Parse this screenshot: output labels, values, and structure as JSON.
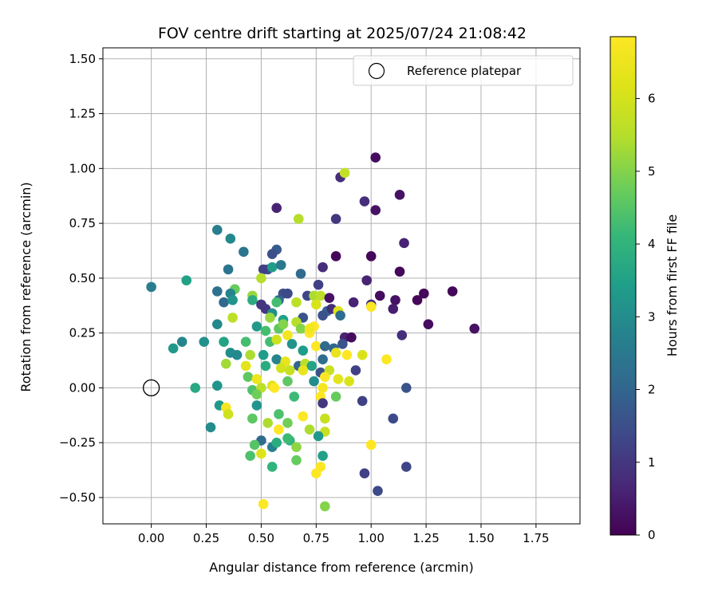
{
  "chart_data": {
    "type": "scatter",
    "title": "FOV centre drift starting at 2025/07/24 21:08:42",
    "xlabel": "Angular distance from reference (arcmin)",
    "ylabel": "Rotation from reference (arcmin)",
    "xlim": [
      -0.22,
      1.95
    ],
    "ylim": [
      -0.62,
      1.55
    ],
    "xticks": [
      0.0,
      0.25,
      0.5,
      0.75,
      1.0,
      1.25,
      1.5,
      1.75
    ],
    "xtick_labels": [
      "0.00",
      "0.25",
      "0.50",
      "0.75",
      "1.00",
      "1.25",
      "1.50",
      "1.75"
    ],
    "yticks": [
      -0.5,
      -0.25,
      0.0,
      0.25,
      0.5,
      0.75,
      1.0,
      1.25,
      1.5
    ],
    "ytick_labels": [
      "−0.50",
      "−0.25",
      "0.00",
      "0.25",
      "0.50",
      "0.75",
      "1.00",
      "1.25",
      "1.50"
    ],
    "grid": true,
    "legend": {
      "placement": "top-right",
      "entries": [
        "Reference platepar"
      ]
    },
    "reference_point": {
      "x": 0.0,
      "y": 0.0
    },
    "colorbar": {
      "label": "Hours from first FF file",
      "range": [
        0,
        6.85
      ],
      "ticks": [
        0,
        1,
        2,
        3,
        4,
        5,
        6
      ],
      "colormap": "viridis"
    },
    "points": [
      [
        1.02,
        1.05,
        0.2
      ],
      [
        0.86,
        0.96,
        0.8
      ],
      [
        0.88,
        0.98,
        5.7
      ],
      [
        1.13,
        0.88,
        0.3
      ],
      [
        0.97,
        0.85,
        0.8
      ],
      [
        1.02,
        0.81,
        0.3
      ],
      [
        0.57,
        0.82,
        0.6
      ],
      [
        0.67,
        0.77,
        5.5
      ],
      [
        0.84,
        0.77,
        1.0
      ],
      [
        1.15,
        0.66,
        0.6
      ],
      [
        0.3,
        0.72,
        2.6
      ],
      [
        0.36,
        0.68,
        2.9
      ],
      [
        0.42,
        0.62,
        2.4
      ],
      [
        0.57,
        0.63,
        1.8
      ],
      [
        0.55,
        0.61,
        1.5
      ],
      [
        0.84,
        0.6,
        0.1
      ],
      [
        1.0,
        0.6,
        0.1
      ],
      [
        0.78,
        0.55,
        0.8
      ],
      [
        0.53,
        0.54,
        1.5
      ],
      [
        0.51,
        0.54,
        1.2
      ],
      [
        0.35,
        0.54,
        2.4
      ],
      [
        0.55,
        0.55,
        3.4
      ],
      [
        0.59,
        0.56,
        2.5
      ],
      [
        0.68,
        0.52,
        2.1
      ],
      [
        1.13,
        0.53,
        0.1
      ],
      [
        0.98,
        0.49,
        0.6
      ],
      [
        0.16,
        0.49,
        3.5
      ],
      [
        0.0,
        0.46,
        2.6
      ],
      [
        0.5,
        0.5,
        5.5
      ],
      [
        0.38,
        0.45,
        4.7
      ],
      [
        0.3,
        0.44,
        2.3
      ],
      [
        0.36,
        0.43,
        2.8
      ],
      [
        0.46,
        0.42,
        5.2
      ],
      [
        0.6,
        0.43,
        1.5
      ],
      [
        0.62,
        0.43,
        1.4
      ],
      [
        0.76,
        0.47,
        1.2
      ],
      [
        0.71,
        0.42,
        1.3
      ],
      [
        0.74,
        0.42,
        5.4
      ],
      [
        0.77,
        0.42,
        5.6
      ],
      [
        0.81,
        0.41,
        0.3
      ],
      [
        1.04,
        0.42,
        0.2
      ],
      [
        1.21,
        0.4,
        0.1
      ],
      [
        1.24,
        0.43,
        0.1
      ],
      [
        1.37,
        0.44,
        0.1
      ],
      [
        1.11,
        0.4,
        0.3
      ],
      [
        0.33,
        0.39,
        2.1
      ],
      [
        0.37,
        0.4,
        3.2
      ],
      [
        0.46,
        0.4,
        3.8
      ],
      [
        0.5,
        0.38,
        1.0
      ],
      [
        0.52,
        0.36,
        1.0
      ],
      [
        0.55,
        0.34,
        3.0
      ],
      [
        0.58,
        0.4,
        2.0
      ],
      [
        0.66,
        0.39,
        5.6
      ],
      [
        0.75,
        0.38,
        6.1
      ],
      [
        0.8,
        0.35,
        2.0
      ],
      [
        0.82,
        0.36,
        0.8
      ],
      [
        0.85,
        0.35,
        6.2
      ],
      [
        0.92,
        0.39,
        0.6
      ],
      [
        1.0,
        0.38,
        0.8
      ],
      [
        1.0,
        0.37,
        6.8
      ],
      [
        1.1,
        0.36,
        0.5
      ],
      [
        0.37,
        0.32,
        5.6
      ],
      [
        0.54,
        0.32,
        5.2
      ],
      [
        0.6,
        0.31,
        3.5
      ],
      [
        0.69,
        0.32,
        1.6
      ],
      [
        0.78,
        0.33,
        1.6
      ],
      [
        0.86,
        0.33,
        2.2
      ],
      [
        1.26,
        0.29,
        0.2
      ],
      [
        1.47,
        0.27,
        0.3
      ],
      [
        0.3,
        0.29,
        2.9
      ],
      [
        0.48,
        0.28,
        3.3
      ],
      [
        0.52,
        0.26,
        4.3
      ],
      [
        0.58,
        0.27,
        4.6
      ],
      [
        0.6,
        0.29,
        5.0
      ],
      [
        0.66,
        0.3,
        5.5
      ],
      [
        0.68,
        0.27,
        5.0
      ],
      [
        0.72,
        0.25,
        6.9
      ],
      [
        0.74,
        0.28,
        6.8
      ],
      [
        0.88,
        0.23,
        0.6
      ],
      [
        0.91,
        0.23,
        0.2
      ],
      [
        0.14,
        0.21,
        2.8
      ],
      [
        0.24,
        0.21,
        3.1
      ],
      [
        0.33,
        0.21,
        3.6
      ],
      [
        0.43,
        0.21,
        4.3
      ],
      [
        0.54,
        0.21,
        4.3
      ],
      [
        0.57,
        0.22,
        5.9
      ],
      [
        0.62,
        0.24,
        6.6
      ],
      [
        0.64,
        0.2,
        3.2
      ],
      [
        0.69,
        0.17,
        3.4
      ],
      [
        0.75,
        0.19,
        6.8
      ],
      [
        0.79,
        0.19,
        2.1
      ],
      [
        0.83,
        0.18,
        2.0
      ],
      [
        0.87,
        0.2,
        1.6
      ],
      [
        1.14,
        0.24,
        0.8
      ],
      [
        0.36,
        0.16,
        3.0
      ],
      [
        0.39,
        0.15,
        2.9
      ],
      [
        0.45,
        0.15,
        5.4
      ],
      [
        0.51,
        0.15,
        3.4
      ],
      [
        0.57,
        0.13,
        2.8
      ],
      [
        0.61,
        0.12,
        6.4
      ],
      [
        0.67,
        0.1,
        2.0
      ],
      [
        0.7,
        0.11,
        5.6
      ],
      [
        0.73,
        0.1,
        3.6
      ],
      [
        0.78,
        0.13,
        2.2
      ],
      [
        0.84,
        0.16,
        6.4
      ],
      [
        0.89,
        0.15,
        6.9
      ],
      [
        0.96,
        0.15,
        6.1
      ],
      [
        1.07,
        0.13,
        6.8
      ],
      [
        0.34,
        0.11,
        5.3
      ],
      [
        0.43,
        0.1,
        6.3
      ],
      [
        0.52,
        0.1,
        3.8
      ],
      [
        0.59,
        0.09,
        6.0
      ],
      [
        0.63,
        0.08,
        5.8
      ],
      [
        0.69,
        0.08,
        6.4
      ],
      [
        0.77,
        0.07,
        1.6
      ],
      [
        0.81,
        0.08,
        5.8
      ],
      [
        0.93,
        0.08,
        1.2
      ],
      [
        0.44,
        0.05,
        4.6
      ],
      [
        0.48,
        0.04,
        6.5
      ],
      [
        0.62,
        0.03,
        4.6
      ],
      [
        0.74,
        0.03,
        3.0
      ],
      [
        0.79,
        0.05,
        6.8
      ],
      [
        0.85,
        0.04,
        6.3
      ],
      [
        0.9,
        0.03,
        6.1
      ],
      [
        0.1,
        0.18,
        3.3
      ],
      [
        0.2,
        0.0,
        3.7
      ],
      [
        0.3,
        0.01,
        3.2
      ],
      [
        0.46,
        -0.01,
        4.4
      ],
      [
        0.5,
        0.0,
        5.6
      ],
      [
        0.55,
        0.01,
        6.2
      ],
      [
        0.56,
        0.0,
        6.9
      ],
      [
        0.78,
        0.0,
        6.7
      ],
      [
        0.48,
        -0.03,
        4.8
      ],
      [
        0.65,
        -0.04,
        4.2
      ],
      [
        0.77,
        -0.04,
        6.9
      ],
      [
        0.84,
        -0.04,
        4.7
      ],
      [
        0.96,
        -0.06,
        1.2
      ],
      [
        0.78,
        -0.07,
        1.0
      ],
      [
        0.31,
        -0.08,
        3.3
      ],
      [
        0.34,
        -0.09,
        6.7
      ],
      [
        0.35,
        -0.12,
        5.9
      ],
      [
        0.48,
        -0.08,
        3.2
      ],
      [
        0.46,
        -0.14,
        4.6
      ],
      [
        0.58,
        -0.12,
        4.4
      ],
      [
        0.69,
        -0.13,
        6.8
      ],
      [
        0.79,
        -0.14,
        5.8
      ],
      [
        1.1,
        -0.14,
        1.4
      ],
      [
        0.27,
        -0.18,
        3.0
      ],
      [
        0.53,
        -0.16,
        5.4
      ],
      [
        0.58,
        -0.19,
        6.9
      ],
      [
        0.62,
        -0.16,
        4.8
      ],
      [
        0.72,
        -0.19,
        5.4
      ],
      [
        0.79,
        -0.2,
        5.8
      ],
      [
        0.5,
        -0.24,
        2.1
      ],
      [
        0.55,
        -0.27,
        2.7
      ],
      [
        0.63,
        -0.24,
        4.0
      ],
      [
        0.66,
        -0.27,
        5.1
      ],
      [
        0.76,
        -0.22,
        3.3
      ],
      [
        0.57,
        -0.25,
        3.8
      ],
      [
        0.62,
        -0.23,
        4.2
      ],
      [
        0.47,
        -0.26,
        4.5
      ],
      [
        1.0,
        -0.26,
        6.9
      ],
      [
        0.45,
        -0.31,
        4.4
      ],
      [
        0.5,
        -0.3,
        6.2
      ],
      [
        0.78,
        -0.31,
        3.5
      ],
      [
        0.55,
        -0.36,
        4.0
      ],
      [
        0.66,
        -0.33,
        4.7
      ],
      [
        0.77,
        -0.36,
        6.8
      ],
      [
        0.75,
        -0.39,
        6.9
      ],
      [
        1.16,
        -0.36,
        1.3
      ],
      [
        0.97,
        -0.39,
        1.2
      ],
      [
        1.03,
        -0.47,
        1.4
      ],
      [
        0.51,
        -0.53,
        6.8
      ],
      [
        0.79,
        -0.54,
        5.0
      ],
      [
        1.16,
        0.0,
        1.6
      ],
      [
        0.72,
        0.27,
        6.6
      ],
      [
        0.57,
        0.39,
        4.3
      ]
    ]
  }
}
